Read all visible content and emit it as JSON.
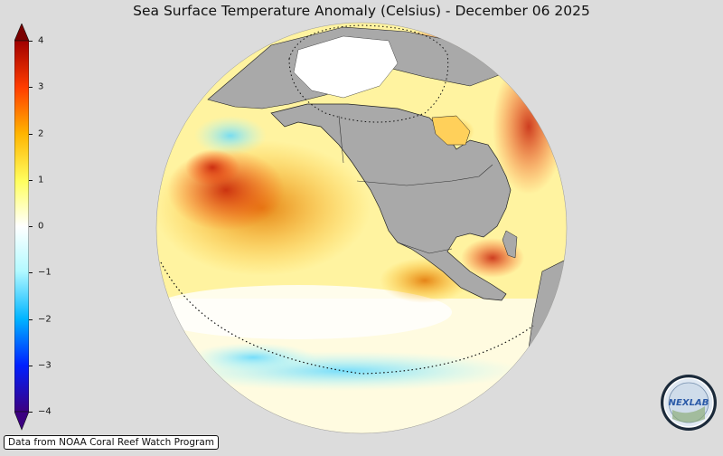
{
  "title": "Sea Surface Temperature Anomaly (Celsius) - December 06 2025",
  "colorbar": {
    "min": -4,
    "max": 4,
    "extend": "both",
    "ticks": [
      {
        "value": 4,
        "label": "4"
      },
      {
        "value": 3,
        "label": "3"
      },
      {
        "value": 2,
        "label": "2"
      },
      {
        "value": 1,
        "label": "1"
      },
      {
        "value": 0,
        "label": "0"
      },
      {
        "value": -1,
        "label": "−1"
      },
      {
        "value": -2,
        "label": "−2"
      },
      {
        "value": -3,
        "label": "−3"
      },
      {
        "value": -4,
        "label": "−4"
      }
    ],
    "colors": [
      "#3c0080",
      "#0020ff",
      "#00b4ff",
      "#b4faff",
      "#ffffff",
      "#ffff60",
      "#ffb400",
      "#ff3c00",
      "#a00000"
    ]
  },
  "map": {
    "projection": "orthographic",
    "region": "Eastern Pacific / North America",
    "land_color": "#a9a9a9",
    "background_color": "#dcdcdc"
  },
  "credit": "Data from NOAA Coral Reef Watch Program",
  "logo": {
    "text": "NEXLAB",
    "icon": "nexlab-logo-icon"
  }
}
